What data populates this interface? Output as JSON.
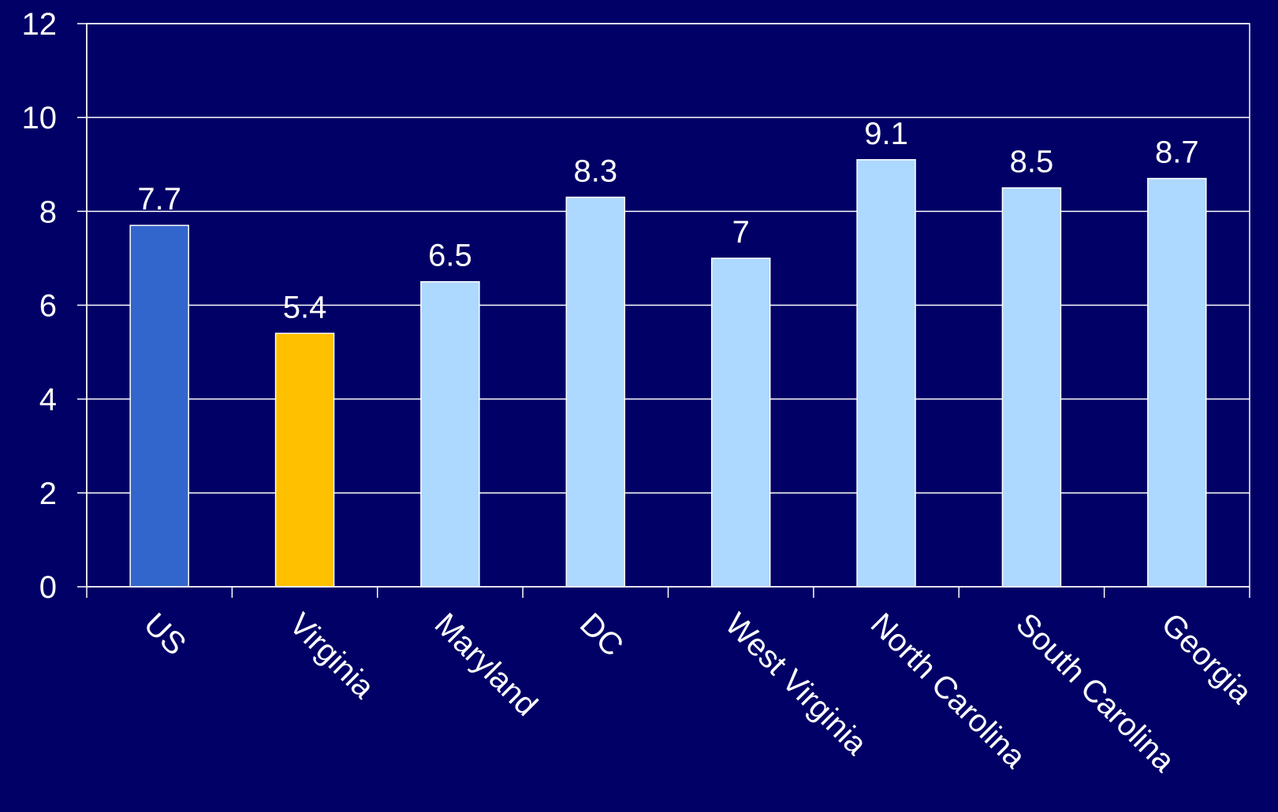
{
  "chart_data": {
    "type": "bar",
    "title": "",
    "xlabel": "",
    "ylabel": "",
    "categories": [
      "US",
      "Virginia",
      "Maryland",
      "DC",
      "West Virginia",
      "North Carolina",
      "South Carolina",
      "Georgia"
    ],
    "values": [
      7.7,
      5.4,
      6.5,
      8.3,
      7,
      9.1,
      8.5,
      8.7
    ],
    "data_labels": [
      "7.7",
      "5.4",
      "6.5",
      "8.3",
      "7",
      "9.1",
      "8.5",
      "8.7"
    ],
    "bar_colors": [
      "#3366cc",
      "#ffc000",
      "#add8ff",
      "#add8ff",
      "#add8ff",
      "#add8ff",
      "#add8ff",
      "#add8ff"
    ],
    "ylim": [
      0,
      12
    ],
    "yticks": [
      0,
      2,
      4,
      6,
      8,
      10,
      12
    ],
    "ytick_labels": [
      "0",
      "2",
      "4",
      "6",
      "8",
      "10",
      "12"
    ],
    "grid": true,
    "legend": "none"
  },
  "colors": {
    "background": "#000066",
    "axis": "#ffffff",
    "gridline": "#ffffff",
    "text": "#ffffff",
    "bar_outline": "#ffffff"
  }
}
